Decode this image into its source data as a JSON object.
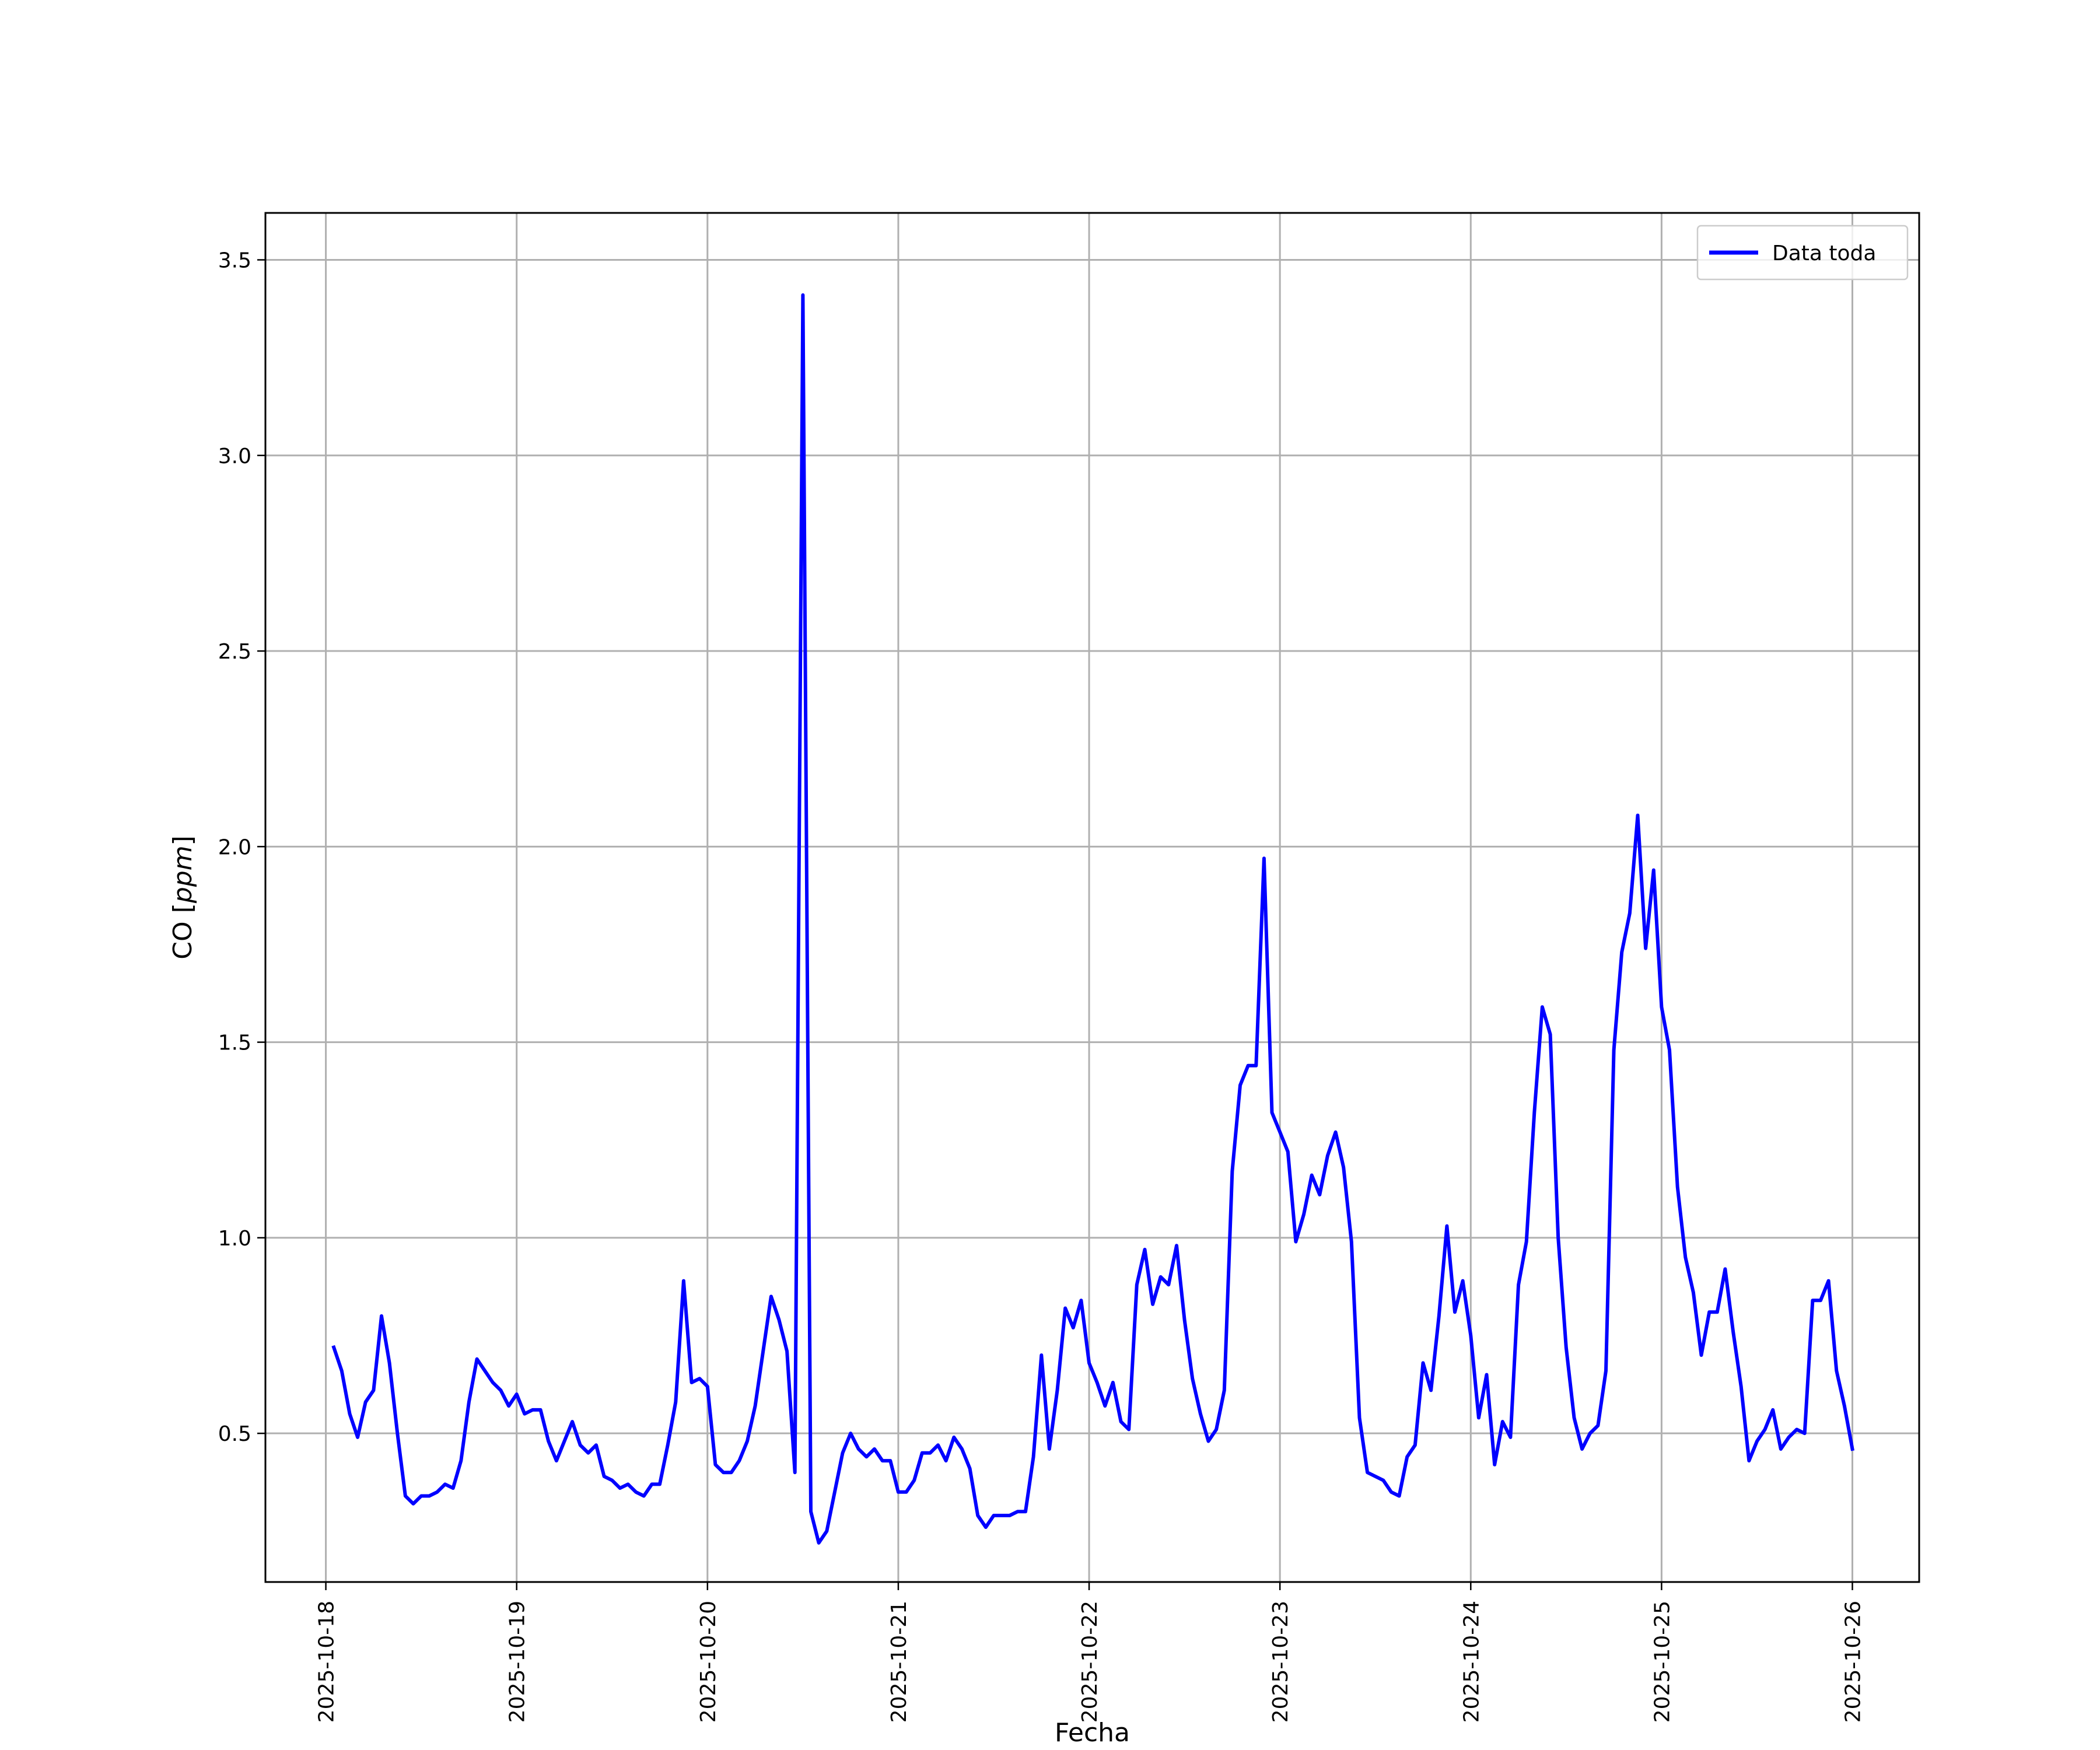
{
  "chart_data": {
    "type": "line",
    "title": "",
    "xlabel": "Fecha",
    "ylabel_main": "CO",
    "ylabel_unit": "ppm",
    "x_ticks": [
      "2025-10-18",
      "2025-10-19",
      "2025-10-20",
      "2025-10-21",
      "2025-10-22",
      "2025-10-23",
      "2025-10-24",
      "2025-10-25",
      "2025-10-26"
    ],
    "y_ticks": [
      "0.5",
      "1.0",
      "1.5",
      "2.0",
      "2.5",
      "3.0",
      "3.5"
    ],
    "y_tick_values": [
      0.5,
      1.0,
      1.5,
      2.0,
      2.5,
      3.0,
      3.5
    ],
    "xlim": [
      "2025-10-17T16:24",
      "2025-10-26T08:24"
    ],
    "ylim": [
      0.12,
      3.62
    ],
    "grid": true,
    "legend_position": "top-right",
    "series": [
      {
        "name": "Data toda",
        "color": "#0000ff",
        "x": [
          "2025-10-18T01:00",
          "2025-10-18T02:00",
          "2025-10-18T03:00",
          "2025-10-18T04:00",
          "2025-10-18T05:00",
          "2025-10-18T06:00",
          "2025-10-18T07:00",
          "2025-10-18T08:00",
          "2025-10-18T09:00",
          "2025-10-18T10:00",
          "2025-10-18T11:00",
          "2025-10-18T12:00",
          "2025-10-18T13:00",
          "2025-10-18T14:00",
          "2025-10-18T15:00",
          "2025-10-18T16:00",
          "2025-10-18T17:00",
          "2025-10-18T18:00",
          "2025-10-18T19:00",
          "2025-10-18T20:00",
          "2025-10-18T21:00",
          "2025-10-18T22:00",
          "2025-10-18T23:00",
          "2025-10-19T00:00",
          "2025-10-19T01:00",
          "2025-10-19T02:00",
          "2025-10-19T03:00",
          "2025-10-19T04:00",
          "2025-10-19T05:00",
          "2025-10-19T06:00",
          "2025-10-19T07:00",
          "2025-10-19T08:00",
          "2025-10-19T09:00",
          "2025-10-19T10:00",
          "2025-10-19T11:00",
          "2025-10-19T12:00",
          "2025-10-19T13:00",
          "2025-10-19T14:00",
          "2025-10-19T15:00",
          "2025-10-19T16:00",
          "2025-10-19T17:00",
          "2025-10-19T18:00",
          "2025-10-19T19:00",
          "2025-10-19T20:00",
          "2025-10-19T21:00",
          "2025-10-19T22:00",
          "2025-10-19T23:00",
          "2025-10-20T00:00",
          "2025-10-20T01:00",
          "2025-10-20T02:00",
          "2025-10-20T03:00",
          "2025-10-20T04:00",
          "2025-10-20T05:00",
          "2025-10-20T06:00",
          "2025-10-20T07:00",
          "2025-10-20T08:00",
          "2025-10-20T09:00",
          "2025-10-20T10:00",
          "2025-10-20T11:00",
          "2025-10-20T12:00",
          "2025-10-20T13:00",
          "2025-10-20T14:00",
          "2025-10-20T15:00",
          "2025-10-20T16:00",
          "2025-10-20T17:00",
          "2025-10-20T18:00",
          "2025-10-20T19:00",
          "2025-10-20T20:00",
          "2025-10-20T21:00",
          "2025-10-20T22:00",
          "2025-10-20T23:00",
          "2025-10-21T00:00",
          "2025-10-21T01:00",
          "2025-10-21T02:00",
          "2025-10-21T03:00",
          "2025-10-21T04:00",
          "2025-10-21T05:00",
          "2025-10-21T06:00",
          "2025-10-21T07:00",
          "2025-10-21T08:00",
          "2025-10-21T09:00",
          "2025-10-21T10:00",
          "2025-10-21T11:00",
          "2025-10-21T12:00",
          "2025-10-21T13:00",
          "2025-10-21T14:00",
          "2025-10-21T15:00",
          "2025-10-21T16:00",
          "2025-10-21T17:00",
          "2025-10-21T18:00",
          "2025-10-21T19:00",
          "2025-10-21T20:00",
          "2025-10-21T21:00",
          "2025-10-21T22:00",
          "2025-10-21T23:00",
          "2025-10-22T00:00",
          "2025-10-22T01:00",
          "2025-10-22T02:00",
          "2025-10-22T03:00",
          "2025-10-22T04:00",
          "2025-10-22T05:00",
          "2025-10-22T06:00",
          "2025-10-22T07:00",
          "2025-10-22T08:00",
          "2025-10-22T09:00",
          "2025-10-22T10:00",
          "2025-10-22T11:00",
          "2025-10-22T12:00",
          "2025-10-22T13:00",
          "2025-10-22T14:00",
          "2025-10-22T15:00",
          "2025-10-22T16:00",
          "2025-10-22T17:00",
          "2025-10-22T18:00",
          "2025-10-22T19:00",
          "2025-10-22T20:00",
          "2025-10-22T21:00",
          "2025-10-22T22:00",
          "2025-10-22T23:00",
          "2025-10-23T00:00",
          "2025-10-23T01:00",
          "2025-10-23T02:00",
          "2025-10-23T03:00",
          "2025-10-23T04:00",
          "2025-10-23T05:00",
          "2025-10-23T06:00",
          "2025-10-23T07:00",
          "2025-10-23T08:00",
          "2025-10-23T09:00",
          "2025-10-23T10:00",
          "2025-10-23T11:00",
          "2025-10-23T12:00",
          "2025-10-23T13:00",
          "2025-10-23T14:00",
          "2025-10-23T15:00",
          "2025-10-23T16:00",
          "2025-10-23T17:00",
          "2025-10-23T18:00",
          "2025-10-23T19:00",
          "2025-10-23T20:00",
          "2025-10-23T21:00",
          "2025-10-23T22:00",
          "2025-10-23T23:00",
          "2025-10-24T00:00",
          "2025-10-24T01:00",
          "2025-10-24T02:00",
          "2025-10-24T03:00",
          "2025-10-24T04:00",
          "2025-10-24T05:00",
          "2025-10-24T06:00",
          "2025-10-24T07:00",
          "2025-10-24T08:00",
          "2025-10-24T09:00",
          "2025-10-24T10:00",
          "2025-10-24T11:00",
          "2025-10-24T12:00",
          "2025-10-24T13:00",
          "2025-10-24T14:00",
          "2025-10-24T15:00",
          "2025-10-24T16:00",
          "2025-10-24T17:00",
          "2025-10-24T18:00",
          "2025-10-24T19:00",
          "2025-10-24T20:00",
          "2025-10-24T21:00",
          "2025-10-24T22:00",
          "2025-10-24T23:00",
          "2025-10-25T00:00",
          "2025-10-25T01:00",
          "2025-10-25T02:00",
          "2025-10-25T03:00",
          "2025-10-25T04:00",
          "2025-10-25T05:00",
          "2025-10-25T06:00",
          "2025-10-25T07:00",
          "2025-10-25T08:00",
          "2025-10-25T09:00",
          "2025-10-25T10:00",
          "2025-10-25T11:00",
          "2025-10-25T12:00",
          "2025-10-25T13:00",
          "2025-10-25T14:00",
          "2025-10-25T15:00",
          "2025-10-25T16:00",
          "2025-10-25T17:00",
          "2025-10-25T18:00",
          "2025-10-25T19:00",
          "2025-10-25T20:00",
          "2025-10-25T21:00",
          "2025-10-25T22:00",
          "2025-10-25T23:00",
          "2025-10-26T00:00"
        ],
        "y": [
          0.72,
          0.66,
          0.55,
          0.49,
          0.58,
          0.61,
          0.8,
          0.68,
          0.5,
          0.34,
          0.32,
          0.34,
          0.34,
          0.35,
          0.37,
          0.36,
          0.43,
          0.58,
          0.69,
          0.66,
          0.63,
          0.61,
          0.57,
          0.6,
          0.55,
          0.56,
          0.56,
          0.48,
          0.43,
          0.48,
          0.53,
          0.47,
          0.45,
          0.47,
          0.39,
          0.38,
          0.36,
          0.37,
          0.35,
          0.34,
          0.37,
          0.37,
          0.47,
          0.58,
          0.89,
          0.63,
          0.64,
          0.62,
          0.42,
          0.4,
          0.4,
          0.43,
          0.48,
          0.57,
          0.71,
          0.85,
          0.79,
          0.71,
          0.4,
          3.41,
          0.3,
          0.22,
          0.25,
          0.35,
          0.45,
          0.5,
          0.46,
          0.44,
          0.46,
          0.43,
          0.43,
          0.35,
          0.35,
          0.38,
          0.45,
          0.45,
          0.47,
          0.43,
          0.49,
          0.46,
          0.41,
          0.29,
          0.26,
          0.29,
          0.29,
          0.29,
          0.3,
          0.3,
          0.44,
          0.7,
          0.46,
          0.61,
          0.82,
          0.77,
          0.84,
          0.68,
          0.63,
          0.57,
          0.63,
          0.53,
          0.51,
          0.88,
          0.97,
          0.83,
          0.9,
          0.88,
          0.98,
          0.79,
          0.64,
          0.55,
          0.48,
          0.51,
          0.61,
          1.17,
          1.39,
          1.44,
          1.44,
          1.97,
          1.32,
          1.27,
          1.22,
          0.99,
          1.06,
          1.16,
          1.11,
          1.21,
          1.27,
          1.18,
          0.99,
          0.54,
          0.4,
          0.39,
          0.38,
          0.35,
          0.34,
          0.44,
          0.47,
          0.68,
          0.61,
          0.8,
          1.03,
          0.81,
          0.89,
          0.75,
          0.54,
          0.65,
          0.42,
          0.53,
          0.49,
          0.88,
          0.99,
          1.32,
          1.59,
          1.52,
          1.0,
          0.72,
          0.54,
          0.46,
          0.5,
          0.52,
          0.66,
          1.48,
          1.73,
          1.83,
          2.08,
          1.74,
          1.94,
          1.59,
          1.48,
          1.13,
          0.95,
          0.86,
          0.7,
          0.81,
          0.81,
          0.92,
          0.76,
          0.62,
          0.43,
          0.48,
          0.51,
          0.56,
          0.46,
          0.49,
          0.51,
          0.5,
          0.84,
          0.84,
          0.89,
          0.66,
          0.57,
          0.46
        ]
      }
    ]
  }
}
